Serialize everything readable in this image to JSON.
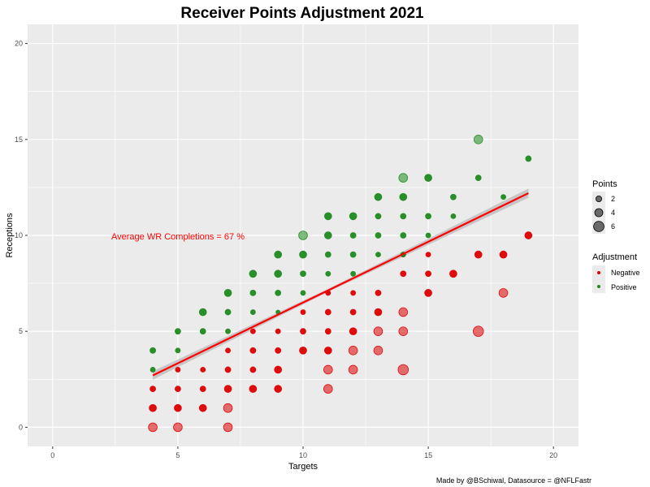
{
  "chart_data": {
    "type": "scatter",
    "title": "Receiver Points Adjustment 2021",
    "xlabel": "Targets",
    "ylabel": "Receptions",
    "xlim": [
      -1,
      21
    ],
    "ylim": [
      -1,
      21
    ],
    "x_ticks": [
      0,
      5,
      10,
      15,
      20
    ],
    "y_ticks": [
      0,
      5,
      10,
      15,
      20
    ],
    "x_tick_labels": [
      "0",
      "5",
      "10",
      "15",
      "20"
    ],
    "y_tick_labels": [
      "0",
      "5",
      "10",
      "15",
      "20"
    ],
    "grid": true,
    "annotation": {
      "text": "Average WR Completions = 67 %",
      "x": 4.9,
      "y": 9.9,
      "color": "#ff0000"
    },
    "caption": "Made by @BSchiwal, Datasource = @NFLFastr",
    "colors": {
      "Negative": "#dd0000",
      "Positive": "#1f8a1f",
      "trend": "#ff0000",
      "band": "#c2c2c2",
      "panel": "#ebebeb"
    },
    "trend_line": {
      "x_start": 4,
      "y_start": 2.7,
      "x_end": 19,
      "y_end": 12.2
    },
    "legend": {
      "position": "right",
      "points_title": "Points",
      "points_sizes": [
        2,
        4,
        6
      ],
      "points_labels": [
        "2",
        "4",
        "6"
      ],
      "adjustment_title": "Adjustment",
      "adjustment_labels": [
        "Negative",
        "Positive"
      ]
    },
    "series": [
      {
        "name": "Negative",
        "points": [
          {
            "x": 4,
            "y": 0,
            "size": 4
          },
          {
            "x": 4,
            "y": 1,
            "size": 3
          },
          {
            "x": 4,
            "y": 2,
            "size": 2
          },
          {
            "x": 5,
            "y": 0,
            "size": 4
          },
          {
            "x": 5,
            "y": 1,
            "size": 3
          },
          {
            "x": 5,
            "y": 2,
            "size": 2
          },
          {
            "x": 5,
            "y": 3,
            "size": 1.5
          },
          {
            "x": 6,
            "y": 1,
            "size": 3
          },
          {
            "x": 6,
            "y": 2,
            "size": 2
          },
          {
            "x": 6,
            "y": 3,
            "size": 1.5
          },
          {
            "x": 7,
            "y": 0,
            "size": 4
          },
          {
            "x": 7,
            "y": 1,
            "size": 4
          },
          {
            "x": 7,
            "y": 2,
            "size": 3
          },
          {
            "x": 7,
            "y": 3,
            "size": 2
          },
          {
            "x": 7,
            "y": 4,
            "size": 1.5
          },
          {
            "x": 8,
            "y": 2,
            "size": 3
          },
          {
            "x": 8,
            "y": 3,
            "size": 2
          },
          {
            "x": 8,
            "y": 4,
            "size": 2
          },
          {
            "x": 8,
            "y": 5,
            "size": 1.5
          },
          {
            "x": 9,
            "y": 2,
            "size": 3
          },
          {
            "x": 9,
            "y": 3,
            "size": 3
          },
          {
            "x": 9,
            "y": 4,
            "size": 2
          },
          {
            "x": 9,
            "y": 5,
            "size": 1.5
          },
          {
            "x": 10,
            "y": 4,
            "size": 3
          },
          {
            "x": 10,
            "y": 5,
            "size": 2
          },
          {
            "x": 10,
            "y": 6,
            "size": 1.5
          },
          {
            "x": 11,
            "y": 2,
            "size": 4
          },
          {
            "x": 11,
            "y": 3,
            "size": 4
          },
          {
            "x": 11,
            "y": 4,
            "size": 3
          },
          {
            "x": 11,
            "y": 5,
            "size": 2
          },
          {
            "x": 11,
            "y": 6,
            "size": 2
          },
          {
            "x": 11,
            "y": 7,
            "size": 1.5
          },
          {
            "x": 12,
            "y": 3,
            "size": 4
          },
          {
            "x": 12,
            "y": 4,
            "size": 4
          },
          {
            "x": 12,
            "y": 5,
            "size": 3
          },
          {
            "x": 12,
            "y": 6,
            "size": 2
          },
          {
            "x": 12,
            "y": 7,
            "size": 1.5
          },
          {
            "x": 13,
            "y": 4,
            "size": 4
          },
          {
            "x": 13,
            "y": 5,
            "size": 4
          },
          {
            "x": 13,
            "y": 6,
            "size": 3
          },
          {
            "x": 13,
            "y": 7,
            "size": 2
          },
          {
            "x": 14,
            "y": 3,
            "size": 5
          },
          {
            "x": 14,
            "y": 5,
            "size": 4
          },
          {
            "x": 14,
            "y": 6,
            "size": 4
          },
          {
            "x": 14,
            "y": 8,
            "size": 2
          },
          {
            "x": 14,
            "y": 9,
            "size": 1.5
          },
          {
            "x": 15,
            "y": 7,
            "size": 3
          },
          {
            "x": 15,
            "y": 8,
            "size": 2
          },
          {
            "x": 15,
            "y": 9,
            "size": 1.5
          },
          {
            "x": 16,
            "y": 8,
            "size": 3
          },
          {
            "x": 17,
            "y": 5,
            "size": 5
          },
          {
            "x": 17,
            "y": 9,
            "size": 3
          },
          {
            "x": 18,
            "y": 7,
            "size": 4
          },
          {
            "x": 18,
            "y": 9,
            "size": 3
          },
          {
            "x": 19,
            "y": 10,
            "size": 3
          }
        ]
      },
      {
        "name": "Positive",
        "points": [
          {
            "x": 4,
            "y": 3,
            "size": 1.5
          },
          {
            "x": 4,
            "y": 4,
            "size": 2
          },
          {
            "x": 5,
            "y": 4,
            "size": 1.5
          },
          {
            "x": 5,
            "y": 5,
            "size": 2
          },
          {
            "x": 6,
            "y": 5,
            "size": 2
          },
          {
            "x": 6,
            "y": 6,
            "size": 3
          },
          {
            "x": 7,
            "y": 5,
            "size": 1.5
          },
          {
            "x": 7,
            "y": 6,
            "size": 2
          },
          {
            "x": 7,
            "y": 7,
            "size": 3
          },
          {
            "x": 8,
            "y": 6,
            "size": 1.5
          },
          {
            "x": 8,
            "y": 7,
            "size": 2
          },
          {
            "x": 8,
            "y": 8,
            "size": 3
          },
          {
            "x": 9,
            "y": 6,
            "size": 1
          },
          {
            "x": 9,
            "y": 7,
            "size": 2
          },
          {
            "x": 9,
            "y": 8,
            "size": 3
          },
          {
            "x": 9,
            "y": 9,
            "size": 3
          },
          {
            "x": 10,
            "y": 7,
            "size": 1.5
          },
          {
            "x": 10,
            "y": 8,
            "size": 2
          },
          {
            "x": 10,
            "y": 9,
            "size": 3
          },
          {
            "x": 10,
            "y": 10,
            "size": 4
          },
          {
            "x": 11,
            "y": 8,
            "size": 1.5
          },
          {
            "x": 11,
            "y": 9,
            "size": 2
          },
          {
            "x": 11,
            "y": 10,
            "size": 3
          },
          {
            "x": 11,
            "y": 11,
            "size": 3
          },
          {
            "x": 12,
            "y": 8,
            "size": 1.5
          },
          {
            "x": 12,
            "y": 9,
            "size": 2
          },
          {
            "x": 12,
            "y": 10,
            "size": 2
          },
          {
            "x": 12,
            "y": 11,
            "size": 3
          },
          {
            "x": 13,
            "y": 9,
            "size": 1.5
          },
          {
            "x": 13,
            "y": 10,
            "size": 2
          },
          {
            "x": 13,
            "y": 11,
            "size": 2
          },
          {
            "x": 13,
            "y": 12,
            "size": 3
          },
          {
            "x": 14,
            "y": 9,
            "size": 1.5
          },
          {
            "x": 14,
            "y": 10,
            "size": 2
          },
          {
            "x": 14,
            "y": 11,
            "size": 2
          },
          {
            "x": 14,
            "y": 12,
            "size": 3
          },
          {
            "x": 14,
            "y": 13,
            "size": 4
          },
          {
            "x": 15,
            "y": 10,
            "size": 1.5
          },
          {
            "x": 15,
            "y": 11,
            "size": 2
          },
          {
            "x": 15,
            "y": 13,
            "size": 3
          },
          {
            "x": 16,
            "y": 11,
            "size": 1.5
          },
          {
            "x": 16,
            "y": 12,
            "size": 2
          },
          {
            "x": 17,
            "y": 13,
            "size": 2
          },
          {
            "x": 17,
            "y": 15,
            "size": 4
          },
          {
            "x": 18,
            "y": 12,
            "size": 1.5
          },
          {
            "x": 19,
            "y": 14,
            "size": 2
          }
        ]
      }
    ]
  }
}
